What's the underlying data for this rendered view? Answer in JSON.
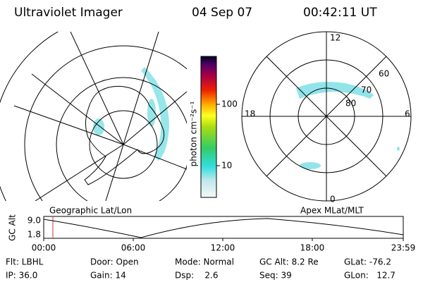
{
  "header": {
    "instrument": "Ultraviolet Imager",
    "date": "04 Sep 07",
    "time": "00:42:11 UT"
  },
  "left_panel": {
    "label": "Geographic Lat/Lon"
  },
  "right_panel": {
    "label": "Apex MLat/MLT",
    "mlt_labels": [
      "12",
      "18",
      "6",
      "0"
    ],
    "mlat_labels": [
      "60",
      "70",
      "80"
    ]
  },
  "colorbar": {
    "label": "photon cm⁻²s⁻¹",
    "ticks": [
      "100",
      "10"
    ]
  },
  "altitude_plot": {
    "ylabel": "GC Alt",
    "yticks": [
      "9.0",
      "1.8"
    ],
    "xticks": [
      "00:00",
      "06:00",
      "12:00",
      "18:00",
      "23:59"
    ]
  },
  "status": {
    "rows": [
      [
        "Flt: LBHL",
        "Door: Open",
        "Mode: Normal",
        "GC Alt: 8.2 Re",
        "GLat: -76.2"
      ],
      [
        "IP: 36.0",
        "Gain: 14",
        "Dsp:    2.6",
        "Seq: 39",
        "GLon:   12.7"
      ]
    ]
  }
}
